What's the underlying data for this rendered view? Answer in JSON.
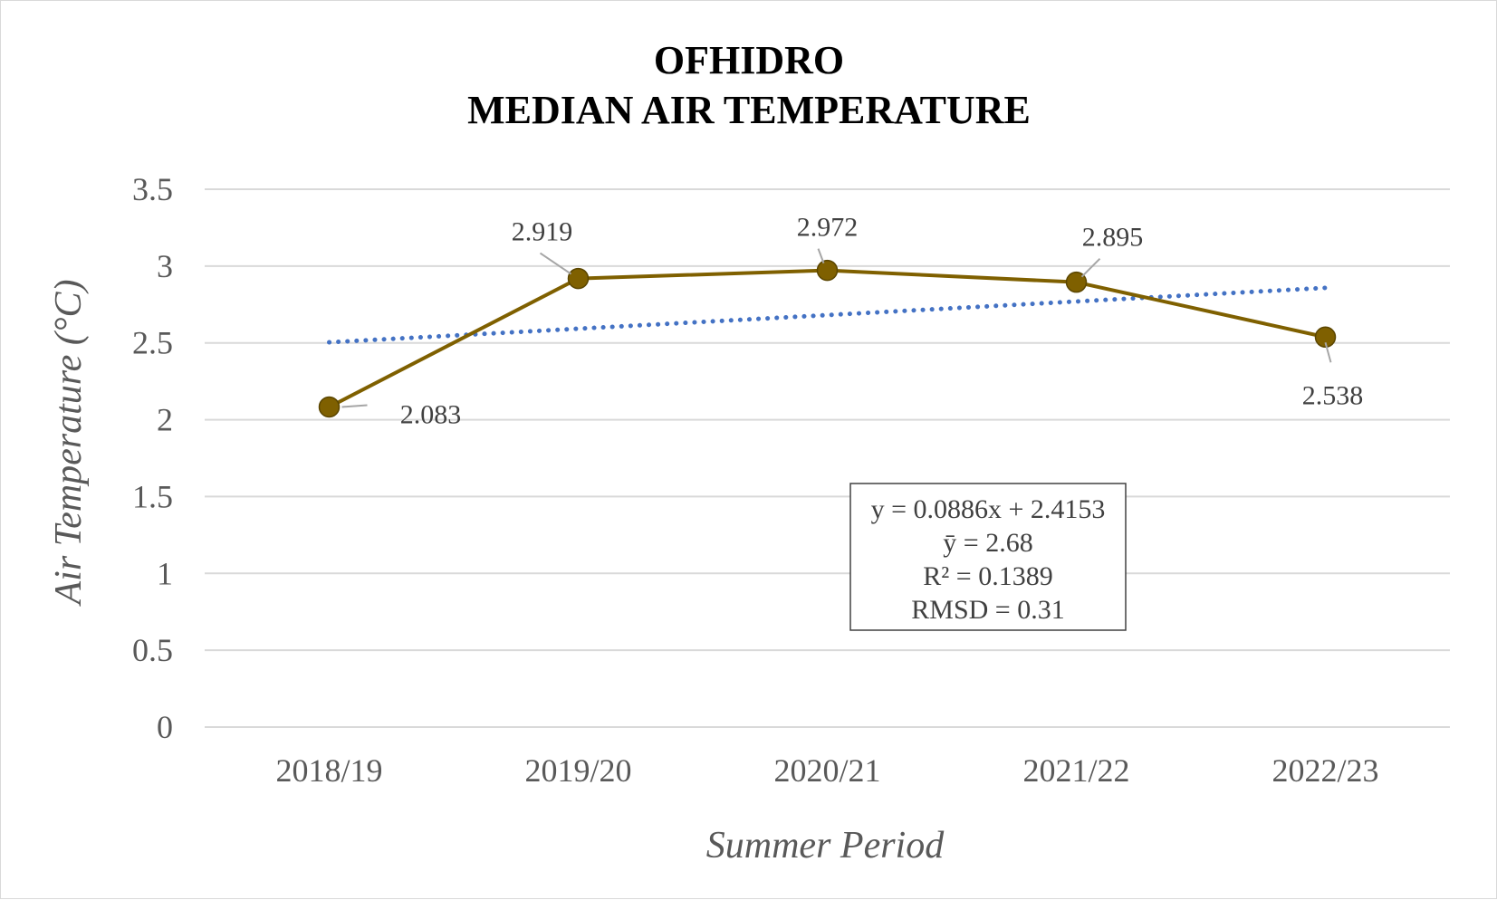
{
  "chart_data": {
    "type": "line",
    "title": "OFHIDRO",
    "subtitle": "MEDIAN AIR TEMPERATURE",
    "xlabel": "Summer Period",
    "ylabel": "Air Temperature (°C)",
    "ylim": [
      0,
      3.5
    ],
    "yticks": [
      "0",
      "0.5",
      "1",
      "1.5",
      "2",
      "2.5",
      "3",
      "3.5"
    ],
    "categories": [
      "2018/19",
      "2019/20",
      "2020/21",
      "2021/22",
      "2022/23"
    ],
    "series": [
      {
        "values": [
          2.083,
          2.919,
          2.972,
          2.895,
          2.538
        ],
        "labels": [
          "2.083",
          "2.919",
          "2.972",
          "2.895",
          "2.538"
        ],
        "color": "#7f6000"
      }
    ],
    "trendline": {
      "type": "linear",
      "style": "dotted",
      "color": "#4472c4",
      "slope": 0.0886,
      "intercept": 2.4153
    },
    "stats_box": [
      "y = 0.0886x + 2.4153",
      "ȳ = 2.68",
      "R² = 0.1389",
      "RMSD = 0.31"
    ],
    "grid": true,
    "legend": "none"
  }
}
